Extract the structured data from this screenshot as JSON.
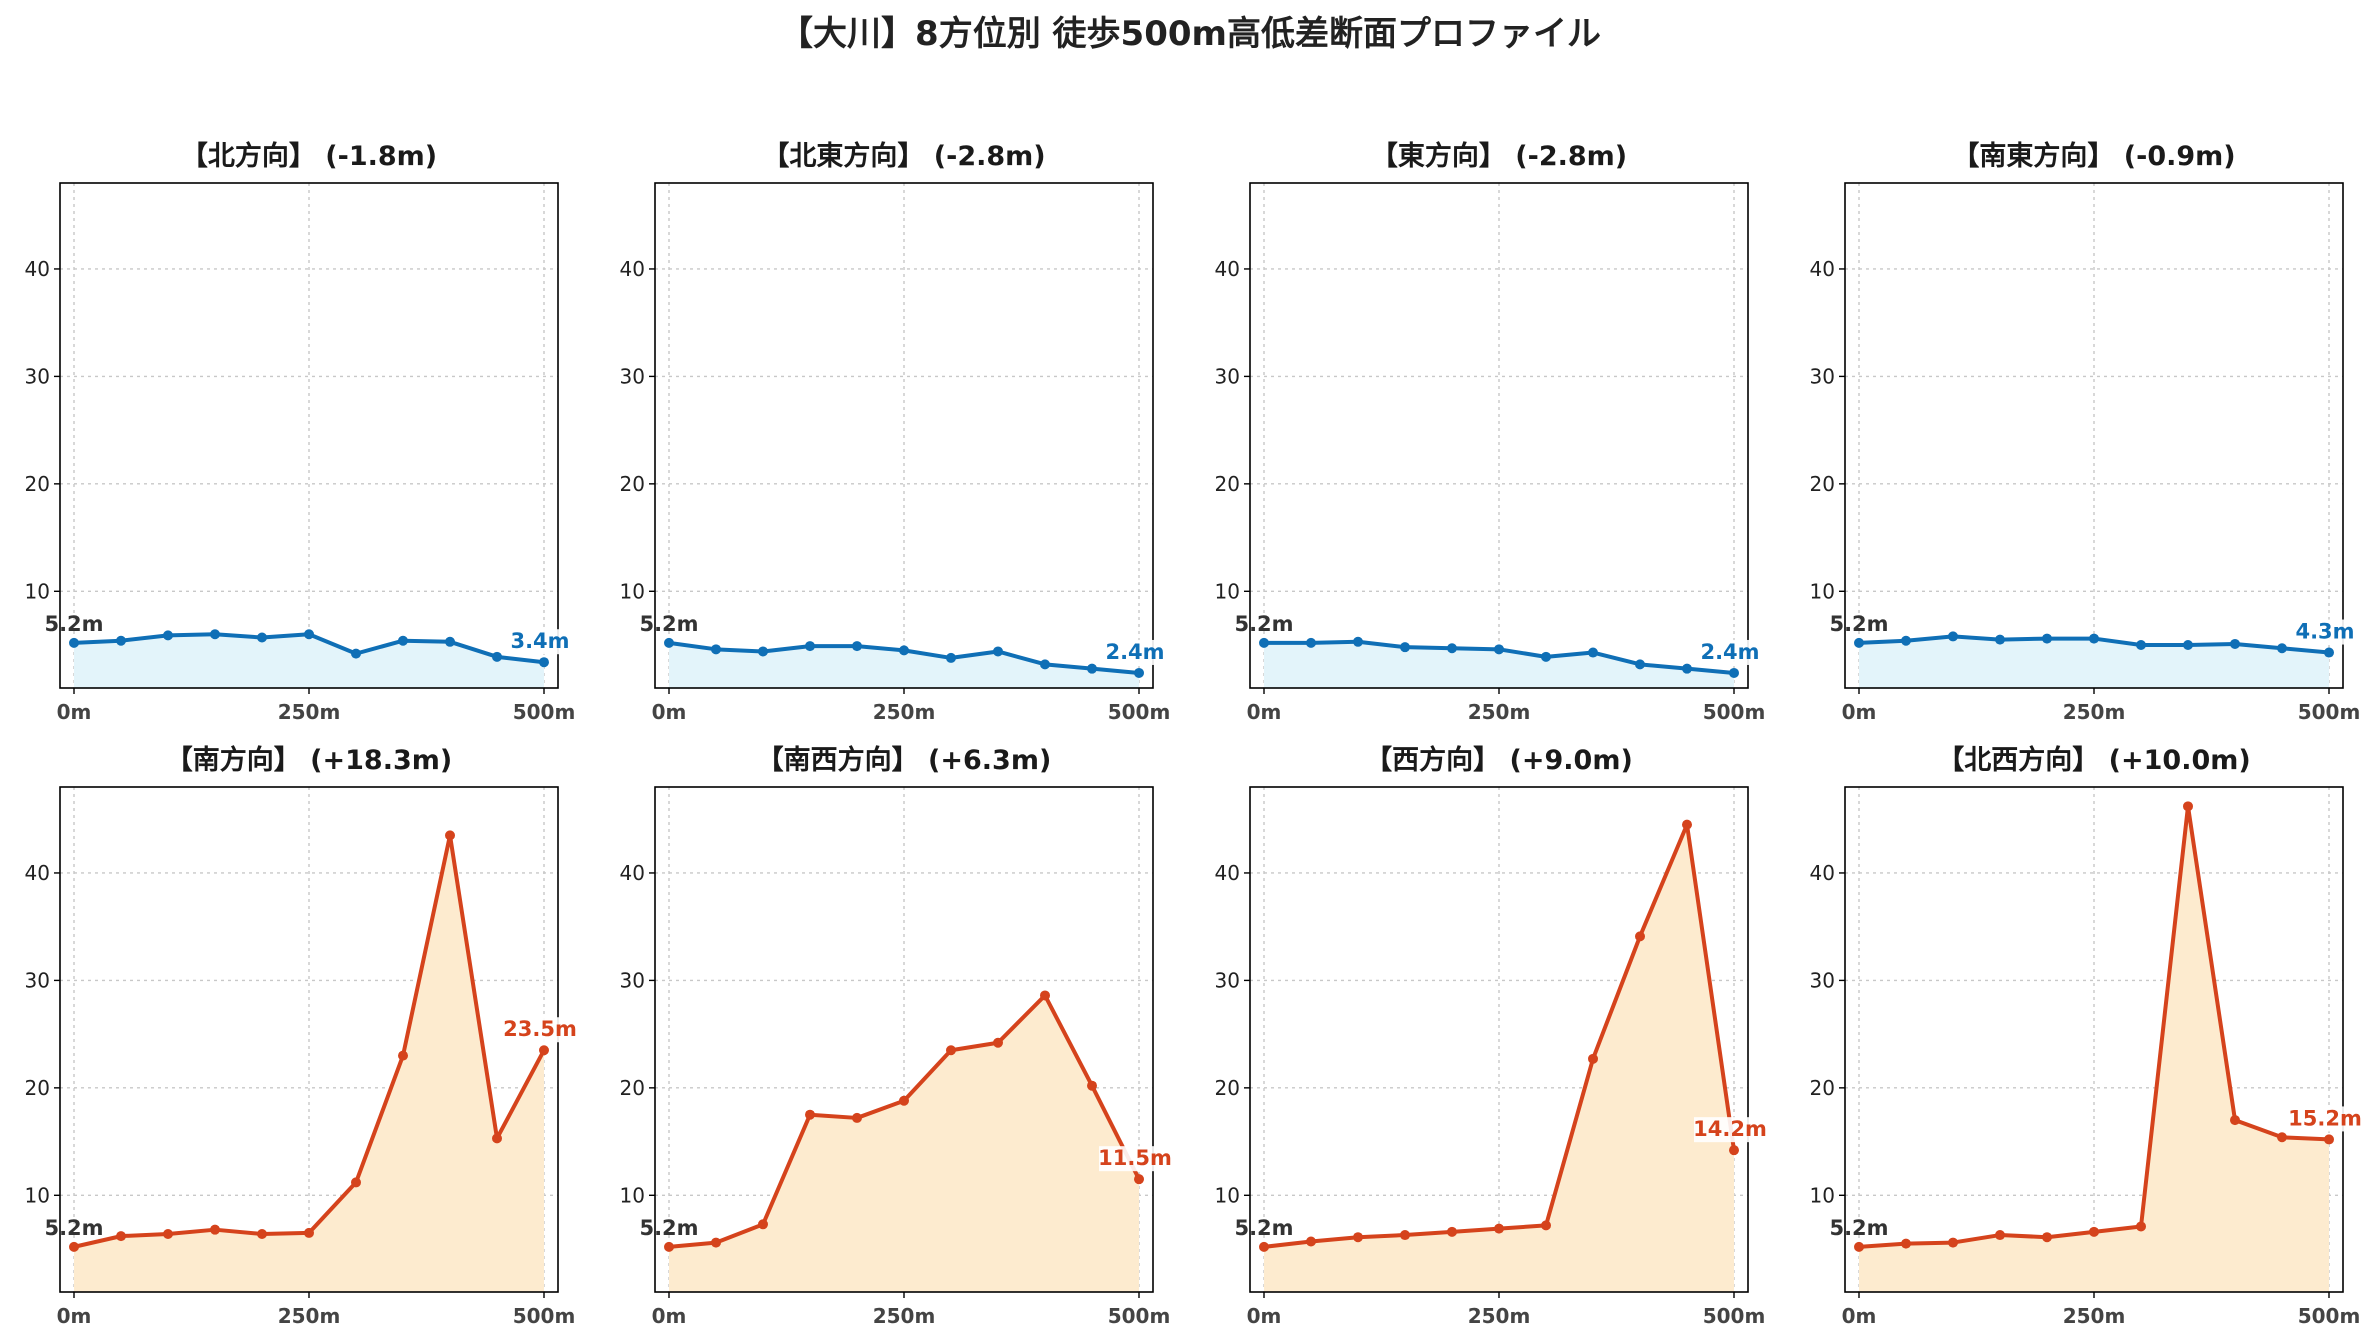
{
  "figure": {
    "title": "【大川】8方位別 徒歩500m高低差断面プロファイル"
  },
  "colors": {
    "down_line": "#0f6fb6",
    "down_fill": "#e3f4fa",
    "up_line": "#d5431c",
    "up_fill": "#fdebcf",
    "start_label": "#333333"
  },
  "chart_data": [
    {
      "type": "area",
      "title": "【北方向】 (-1.8m)",
      "trend": "down",
      "x": [
        0,
        50,
        100,
        150,
        200,
        250,
        300,
        350,
        400,
        450,
        500
      ],
      "y": [
        5.2,
        5.4,
        5.9,
        6.0,
        5.7,
        6.0,
        4.2,
        5.4,
        5.3,
        3.9,
        3.4
      ],
      "xticks": [
        "0m",
        "250m",
        "500m"
      ],
      "yticks": [
        10,
        20,
        30,
        40
      ],
      "ylim": [
        1,
        48
      ],
      "start_label": "5.2m",
      "end_label": "3.4m",
      "grid": true
    },
    {
      "type": "area",
      "title": "【北東方向】 (-2.8m)",
      "trend": "down",
      "x": [
        0,
        50,
        100,
        150,
        200,
        250,
        300,
        350,
        400,
        450,
        500
      ],
      "y": [
        5.2,
        4.6,
        4.4,
        4.9,
        4.9,
        4.5,
        3.8,
        4.4,
        3.2,
        2.8,
        2.4
      ],
      "xticks": [
        "0m",
        "250m",
        "500m"
      ],
      "yticks": [
        10,
        20,
        30,
        40
      ],
      "ylim": [
        1,
        48
      ],
      "start_label": "5.2m",
      "end_label": "2.4m",
      "grid": true
    },
    {
      "type": "area",
      "title": "【東方向】 (-2.8m)",
      "trend": "down",
      "x": [
        0,
        50,
        100,
        150,
        200,
        250,
        300,
        350,
        400,
        450,
        500
      ],
      "y": [
        5.2,
        5.2,
        5.3,
        4.8,
        4.7,
        4.6,
        3.9,
        4.3,
        3.2,
        2.8,
        2.4
      ],
      "xticks": [
        "0m",
        "250m",
        "500m"
      ],
      "yticks": [
        10,
        20,
        30,
        40
      ],
      "ylim": [
        1,
        48
      ],
      "start_label": "5.2m",
      "end_label": "2.4m",
      "grid": true
    },
    {
      "type": "area",
      "title": "【南東方向】 (-0.9m)",
      "trend": "down",
      "x": [
        0,
        50,
        100,
        150,
        200,
        250,
        300,
        350,
        400,
        450,
        500
      ],
      "y": [
        5.2,
        5.4,
        5.8,
        5.5,
        5.6,
        5.6,
        5.0,
        5.0,
        5.1,
        4.7,
        4.3
      ],
      "xticks": [
        "0m",
        "250m",
        "500m"
      ],
      "yticks": [
        10,
        20,
        30,
        40
      ],
      "ylim": [
        1,
        48
      ],
      "start_label": "5.2m",
      "end_label": "4.3m",
      "grid": true
    },
    {
      "type": "area",
      "title": "【南方向】 (+18.3m)",
      "trend": "up",
      "x": [
        0,
        50,
        100,
        150,
        200,
        250,
        300,
        350,
        400,
        450,
        500
      ],
      "y": [
        5.2,
        6.2,
        6.4,
        6.8,
        6.4,
        6.5,
        11.2,
        23.0,
        43.5,
        15.3,
        23.5
      ],
      "xticks": [
        "0m",
        "250m",
        "500m"
      ],
      "yticks": [
        10,
        20,
        30,
        40
      ],
      "ylim": [
        1,
        48
      ],
      "start_label": "5.2m",
      "end_label": "23.5m",
      "grid": true
    },
    {
      "type": "area",
      "title": "【南西方向】 (+6.3m)",
      "trend": "up",
      "x": [
        0,
        50,
        100,
        150,
        200,
        250,
        300,
        350,
        400,
        450,
        500
      ],
      "y": [
        5.2,
        5.6,
        7.3,
        17.5,
        17.2,
        18.8,
        23.5,
        24.2,
        28.6,
        20.2,
        11.5
      ],
      "xticks": [
        "0m",
        "250m",
        "500m"
      ],
      "yticks": [
        10,
        20,
        30,
        40
      ],
      "ylim": [
        1,
        48
      ],
      "start_label": "5.2m",
      "end_label": "11.5m",
      "grid": true
    },
    {
      "type": "area",
      "title": "【西方向】 (+9.0m)",
      "trend": "up",
      "x": [
        0,
        50,
        100,
        150,
        200,
        250,
        300,
        350,
        400,
        450,
        500
      ],
      "y": [
        5.2,
        5.7,
        6.1,
        6.3,
        6.6,
        6.9,
        7.2,
        22.7,
        34.1,
        44.5,
        14.2
      ],
      "xticks": [
        "0m",
        "250m",
        "500m"
      ],
      "yticks": [
        10,
        20,
        30,
        40
      ],
      "ylim": [
        1,
        48
      ],
      "start_label": "5.2m",
      "end_label": "14.2m",
      "grid": true
    },
    {
      "type": "area",
      "title": "【北西方向】 (+10.0m)",
      "trend": "up",
      "x": [
        0,
        50,
        100,
        150,
        200,
        250,
        300,
        350,
        400,
        450,
        500
      ],
      "y": [
        5.2,
        5.5,
        5.6,
        6.3,
        6.1,
        6.6,
        7.1,
        46.2,
        17.0,
        15.4,
        15.2
      ],
      "xticks": [
        "0m",
        "250m",
        "500m"
      ],
      "yticks": [
        10,
        20,
        30,
        40
      ],
      "ylim": [
        1,
        48
      ],
      "start_label": "5.2m",
      "end_label": "15.2m",
      "grid": true
    }
  ]
}
